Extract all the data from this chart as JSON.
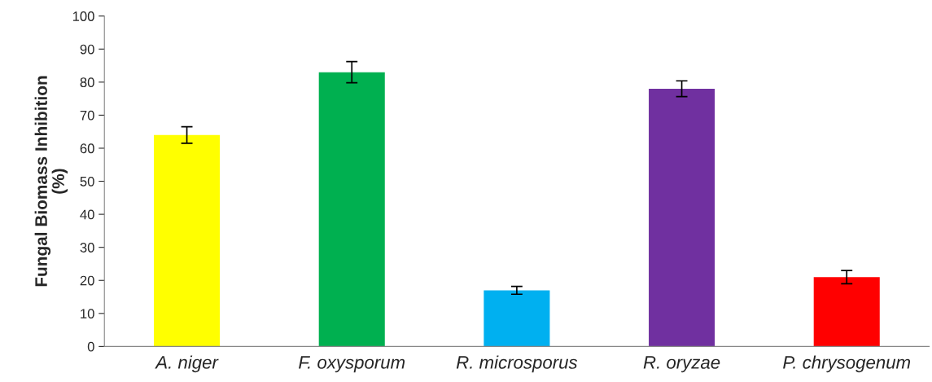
{
  "chart_data": {
    "type": "bar",
    "ylabel": "Fungal Biomass Inhibition\n(%)",
    "categories": [
      "A. niger",
      "F. oxysporum",
      "R. microsporus",
      "R. oryzae",
      "P. chrysogenum"
    ],
    "values": [
      64,
      83,
      17,
      78,
      21
    ],
    "errors": [
      2.5,
      3.2,
      1.2,
      2.4,
      2
    ],
    "colors": [
      "#ffff00",
      "#00b050",
      "#00b0f0",
      "#7030a0",
      "#ff0000"
    ],
    "ylim": [
      0,
      100
    ],
    "yticks": [
      0,
      10,
      20,
      30,
      40,
      50,
      60,
      70,
      80,
      90,
      100
    ],
    "grid": false
  }
}
